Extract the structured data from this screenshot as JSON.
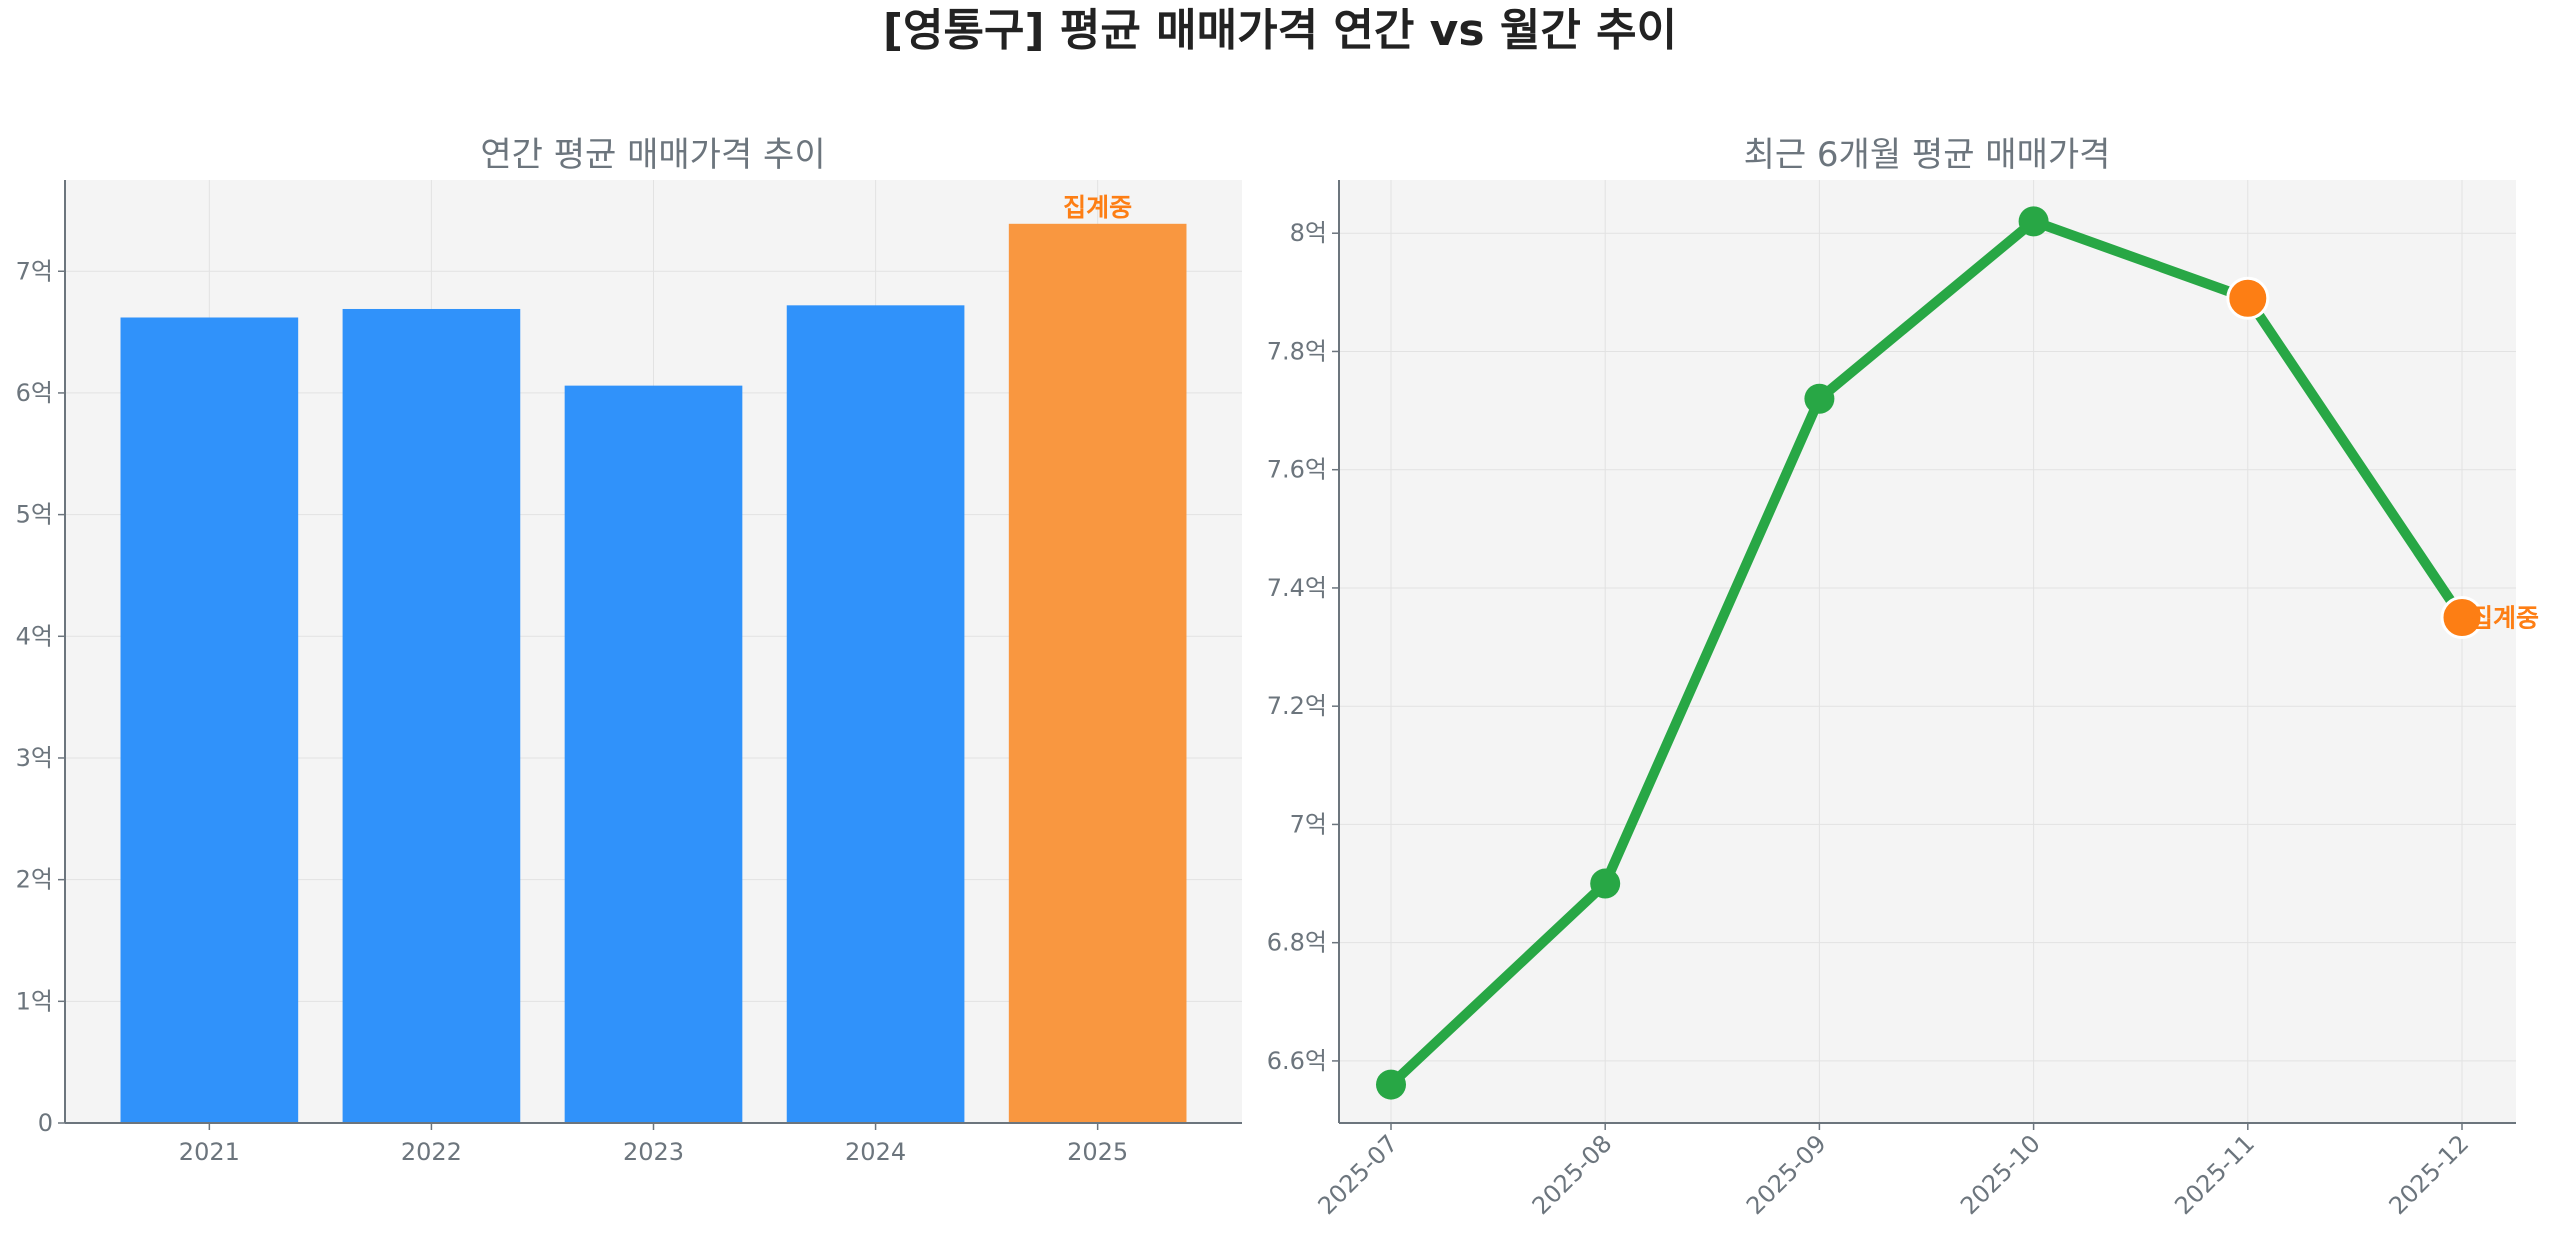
{
  "title": "[영통구] 평균 매매가격 연간 vs 월간 추이",
  "colors": {
    "bar": "#3092fa",
    "bar_highlight": "#f99740",
    "line": "#28a745",
    "marker_highlight": "#fd7e14",
    "plot_bg": "#f4f4f4"
  },
  "chart_data": [
    {
      "type": "bar",
      "title": "연간 평균 매매가격 추이",
      "categories": [
        "2021",
        "2022",
        "2023",
        "2024",
        "2025"
      ],
      "values": [
        6.62,
        6.69,
        6.06,
        6.72,
        7.39
      ],
      "unit": "억",
      "highlight_index": 4,
      "annotation": "집계중",
      "ylim": [
        0,
        7.75
      ],
      "yticks": [
        0,
        1,
        2,
        3,
        4,
        5,
        6,
        7
      ],
      "ytick_labels": [
        "0",
        "1억",
        "2억",
        "3억",
        "4억",
        "5억",
        "6억",
        "7억"
      ],
      "grid": true,
      "xlabel": "",
      "ylabel": ""
    },
    {
      "type": "line",
      "title": "최근 6개월 평균 매매가격",
      "categories": [
        "2025-07",
        "2025-08",
        "2025-09",
        "2025-10",
        "2025-11",
        "2025-12"
      ],
      "values": [
        6.56,
        6.9,
        7.72,
        8.02,
        7.89,
        7.35
      ],
      "unit": "억",
      "highlight_indices": [
        4,
        5
      ],
      "annotation": "집계중",
      "annotation_index": 5,
      "ylim": [
        6.495,
        8.09
      ],
      "yticks": [
        6.6,
        6.8,
        7.0,
        7.2,
        7.4,
        7.6,
        7.8,
        8.0
      ],
      "ytick_labels": [
        "6.6억",
        "6.8억",
        "7억",
        "7.2억",
        "7.4억",
        "7.6억",
        "7.8억",
        "8억"
      ],
      "grid": true,
      "xlabel": "",
      "ylabel": ""
    }
  ]
}
